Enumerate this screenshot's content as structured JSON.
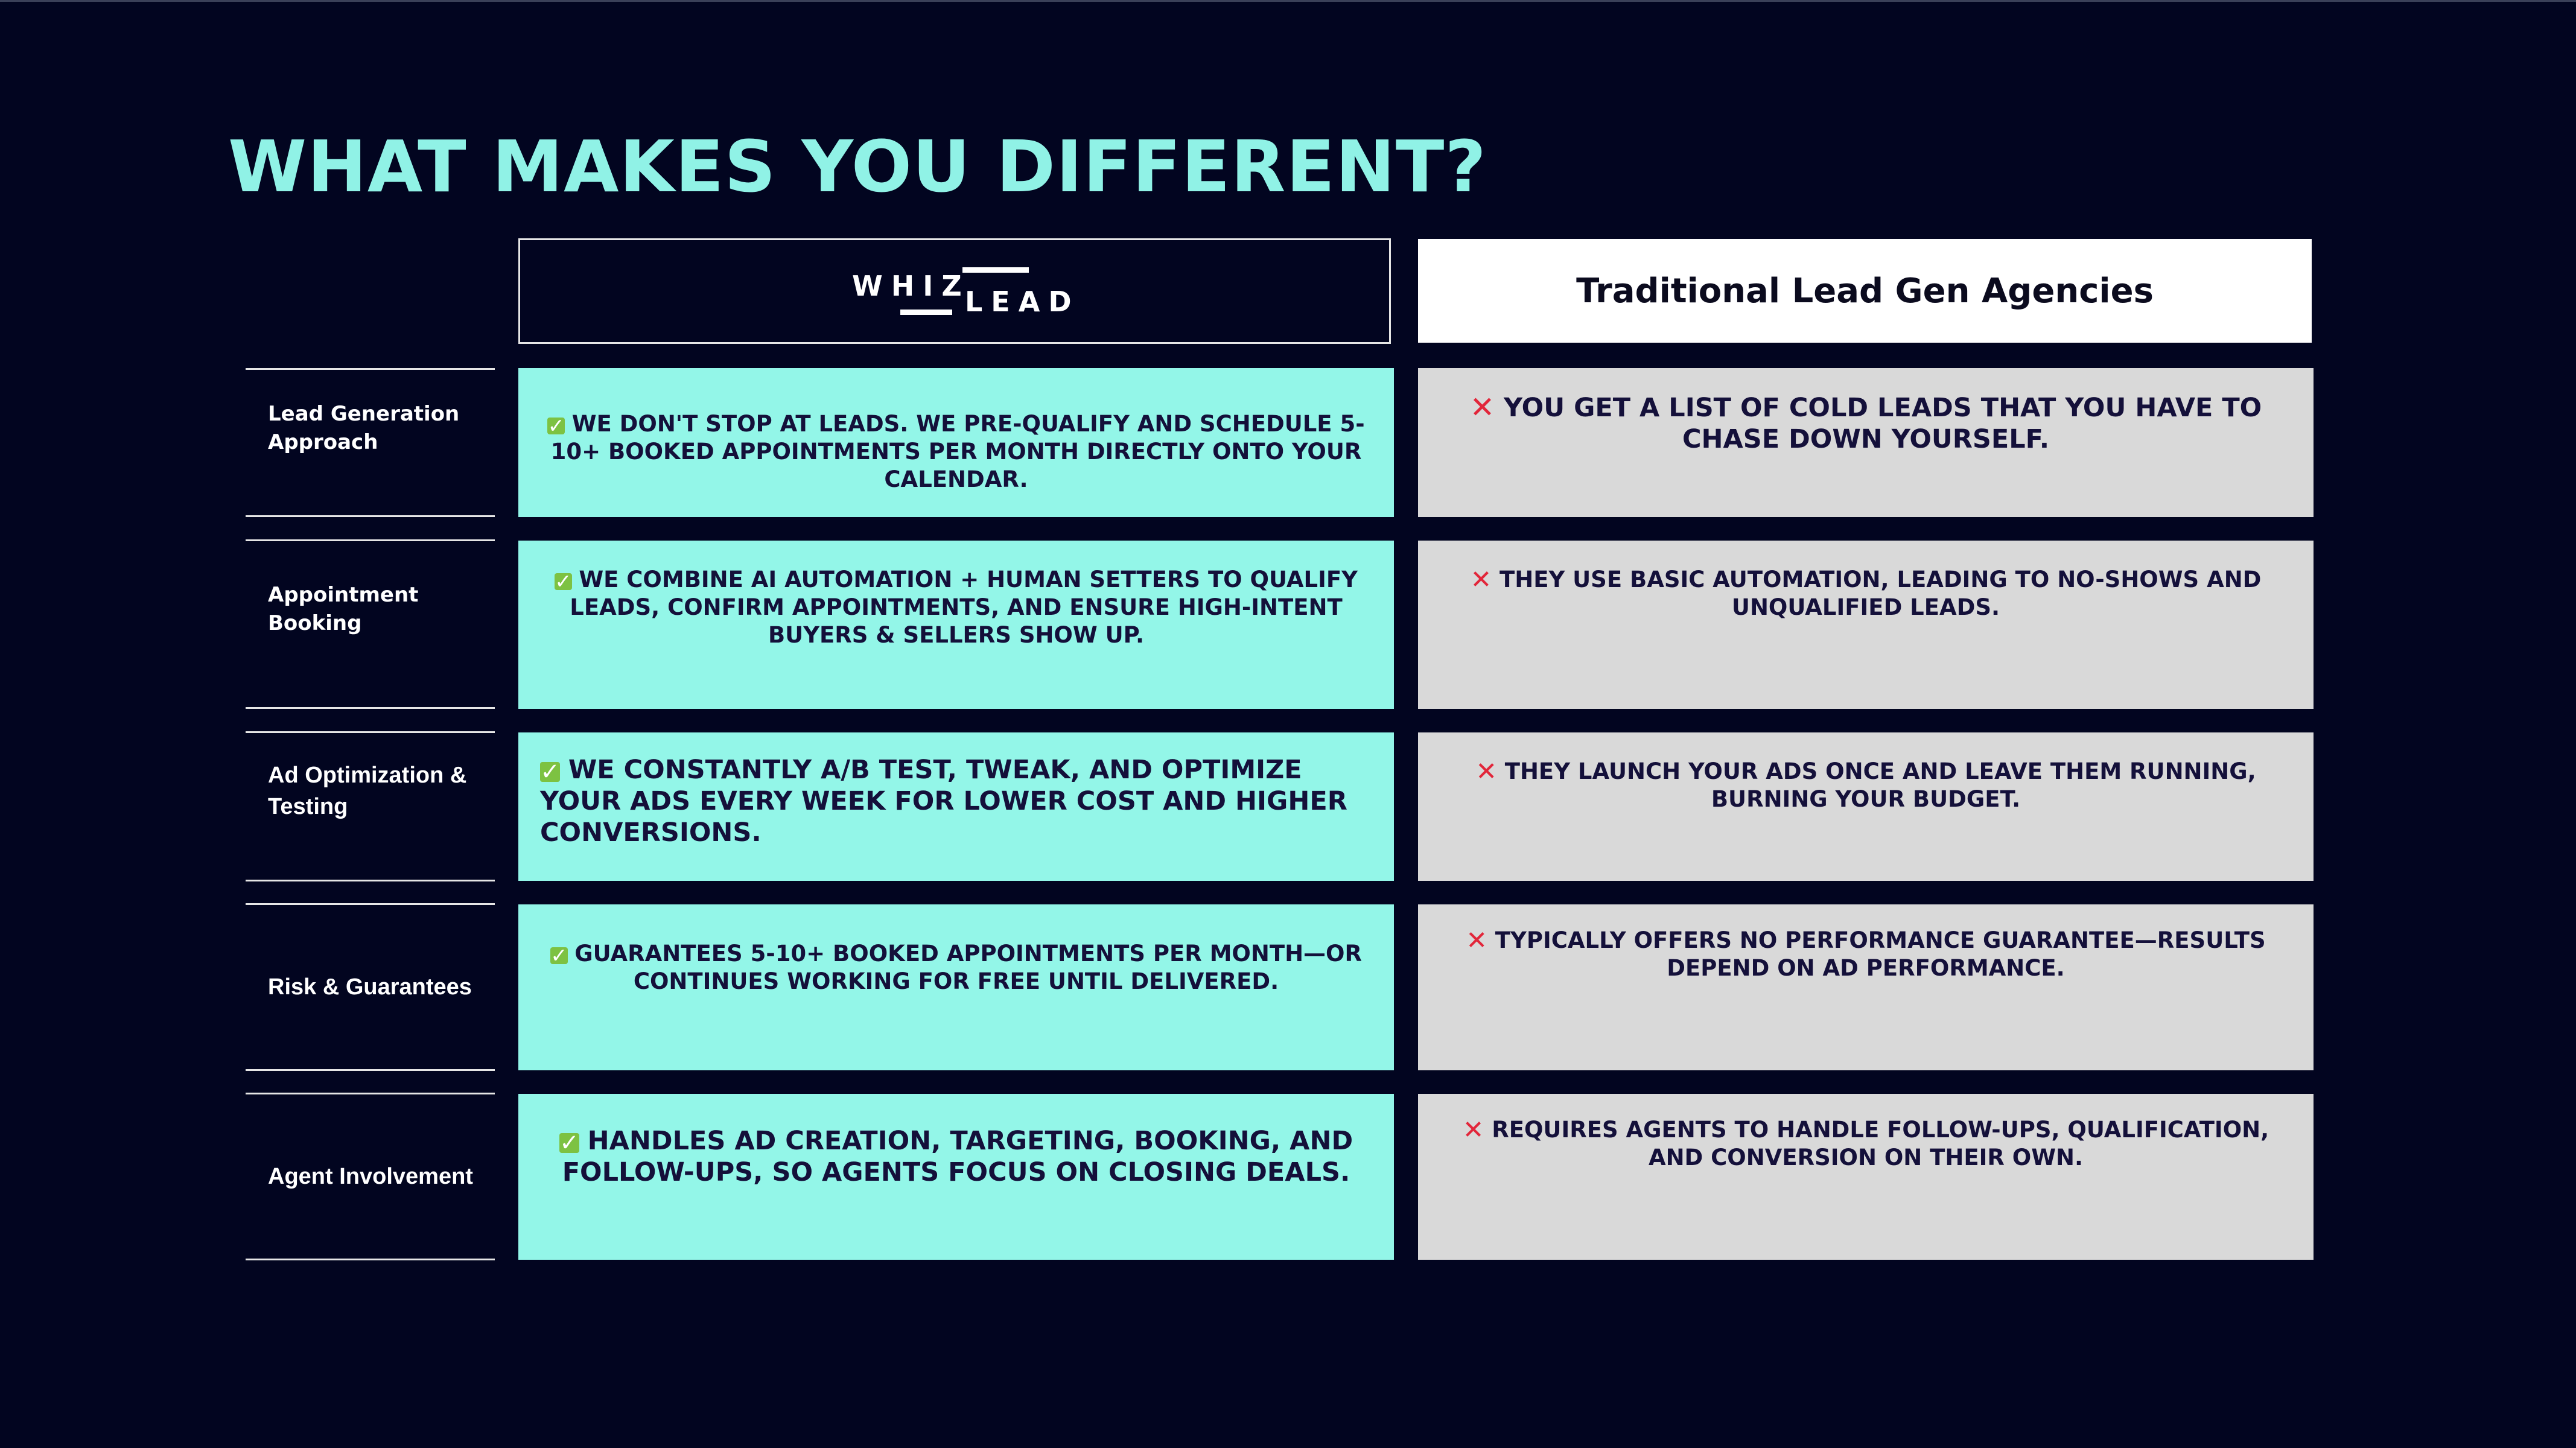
{
  "title": "WHAT MAKES YOU DIFFERENT?",
  "header": {
    "whizlead_logo": {
      "word_top": "WHIZ",
      "word_bottom": "LEAD"
    },
    "traditional": "Traditional Lead Gen Agencies"
  },
  "rows": [
    {
      "label": "Lead Generation Approach",
      "whizlead": "WE DON'T STOP AT LEADS. WE PRE-QUALIFY AND SCHEDULE 5-10+ BOOKED APPOINTMENTS PER MONTH DIRECTLY ONTO YOUR CALENDAR.",
      "traditional": "YOU GET A LIST OF COLD LEADS THAT YOU HAVE TO CHASE DOWN YOURSELF."
    },
    {
      "label": "Appointment Booking",
      "whizlead": "WE COMBINE AI AUTOMATION + HUMAN SETTERS TO QUALIFY LEADS, CONFIRM APPOINTMENTS, AND ENSURE HIGH-INTENT BUYERS & SELLERS SHOW UP.",
      "traditional": "THEY USE BASIC AUTOMATION, LEADING TO NO-SHOWS AND UNQUALIFIED LEADS."
    },
    {
      "label": "Ad Optimization & Testing",
      "whizlead": "WE CONSTANTLY A/B TEST, TWEAK, AND OPTIMIZE YOUR ADS EVERY WEEK FOR LOWER COST AND HIGHER CONVERSIONS.",
      "traditional": "THEY LAUNCH YOUR ADS ONCE AND LEAVE THEM RUNNING, BURNING YOUR BUDGET."
    },
    {
      "label": "Risk & Guarantees",
      "whizlead": "GUARANTEES 5-10+ BOOKED APPOINTMENTS PER MONTH—OR CONTINUES WORKING FOR FREE UNTIL DELIVERED.",
      "traditional": "TYPICALLY OFFERS NO PERFORMANCE GUARANTEE—RESULTS DEPEND ON AD PERFORMANCE."
    },
    {
      "label": "Agent Involvement",
      "whizlead": "HANDLES AD CREATION, TARGETING, BOOKING, AND FOLLOW-UPS, SO AGENTS FOCUS ON CLOSING DEALS.",
      "traditional": "REQUIRES AGENTS TO HANDLE FOLLOW-UPS, QUALIFICATION, AND CONVERSION ON THEIR OWN."
    }
  ],
  "icons": {
    "positive": "check-icon",
    "negative": "cross-icon"
  },
  "colors": {
    "background": "#020520",
    "title": "#90f2e6",
    "whizlead_cell": "#93f6e8",
    "traditional_cell": "#d9d9d9",
    "check": "#7dc242",
    "cross": "#e2263a",
    "cell_text": "#14103a"
  }
}
